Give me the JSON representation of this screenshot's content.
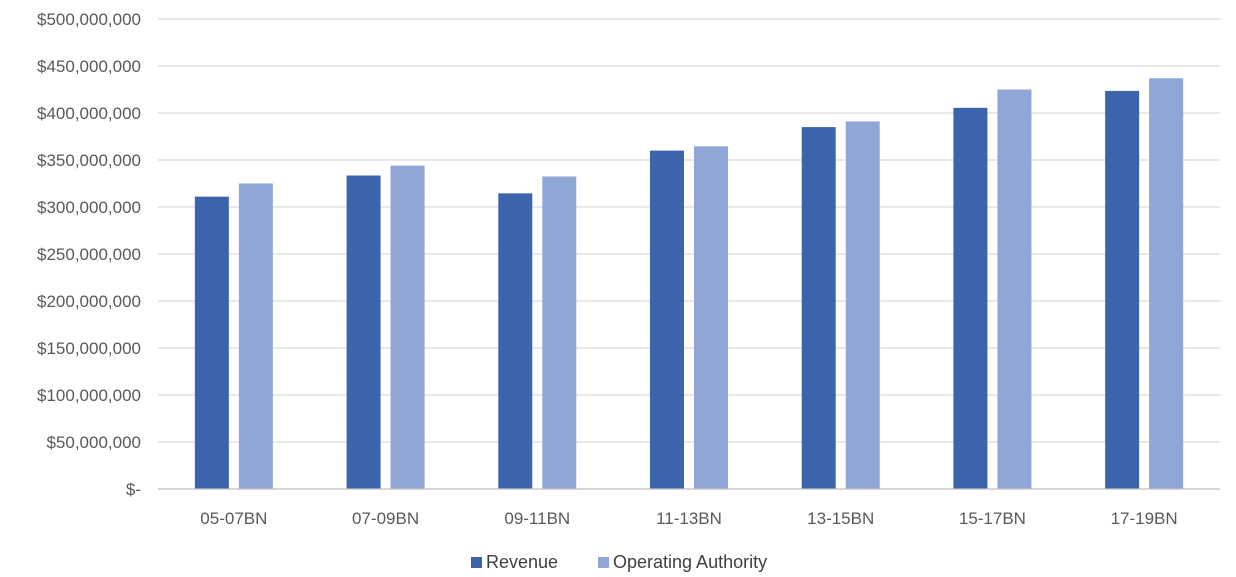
{
  "chart_data": {
    "type": "bar",
    "title": "",
    "xlabel": "",
    "ylabel": "",
    "categories": [
      "05-07BN",
      "07-09BN",
      "09-11BN",
      "11-13BN",
      "13-15BN",
      "15-17BN",
      "17-19BN"
    ],
    "series": [
      {
        "name": "Revenue",
        "color": "#3c64ad",
        "values": [
          311000000,
          333500000,
          314500000,
          360000000,
          385000000,
          405500000,
          423500000
        ]
      },
      {
        "name": "Operating Authority",
        "color": "#8fa6d6",
        "values": [
          325000000,
          344000000,
          332500000,
          364500000,
          391000000,
          425000000,
          437000000
        ]
      }
    ],
    "ylim": [
      0,
      500000000
    ],
    "yticks": [
      {
        "value": 0,
        "label": "$-"
      },
      {
        "value": 50000000,
        "label": "$50,000,000"
      },
      {
        "value": 100000000,
        "label": "$100,000,000"
      },
      {
        "value": 150000000,
        "label": "$150,000,000"
      },
      {
        "value": 200000000,
        "label": "$200,000,000"
      },
      {
        "value": 250000000,
        "label": "$250,000,000"
      },
      {
        "value": 300000000,
        "label": "$300,000,000"
      },
      {
        "value": 350000000,
        "label": "$350,000,000"
      },
      {
        "value": 400000000,
        "label": "$400,000,000"
      },
      {
        "value": 450000000,
        "label": "$450,000,000"
      },
      {
        "value": 500000000,
        "label": "$500,000,000"
      }
    ],
    "grid": true,
    "legend_position": "bottom"
  }
}
